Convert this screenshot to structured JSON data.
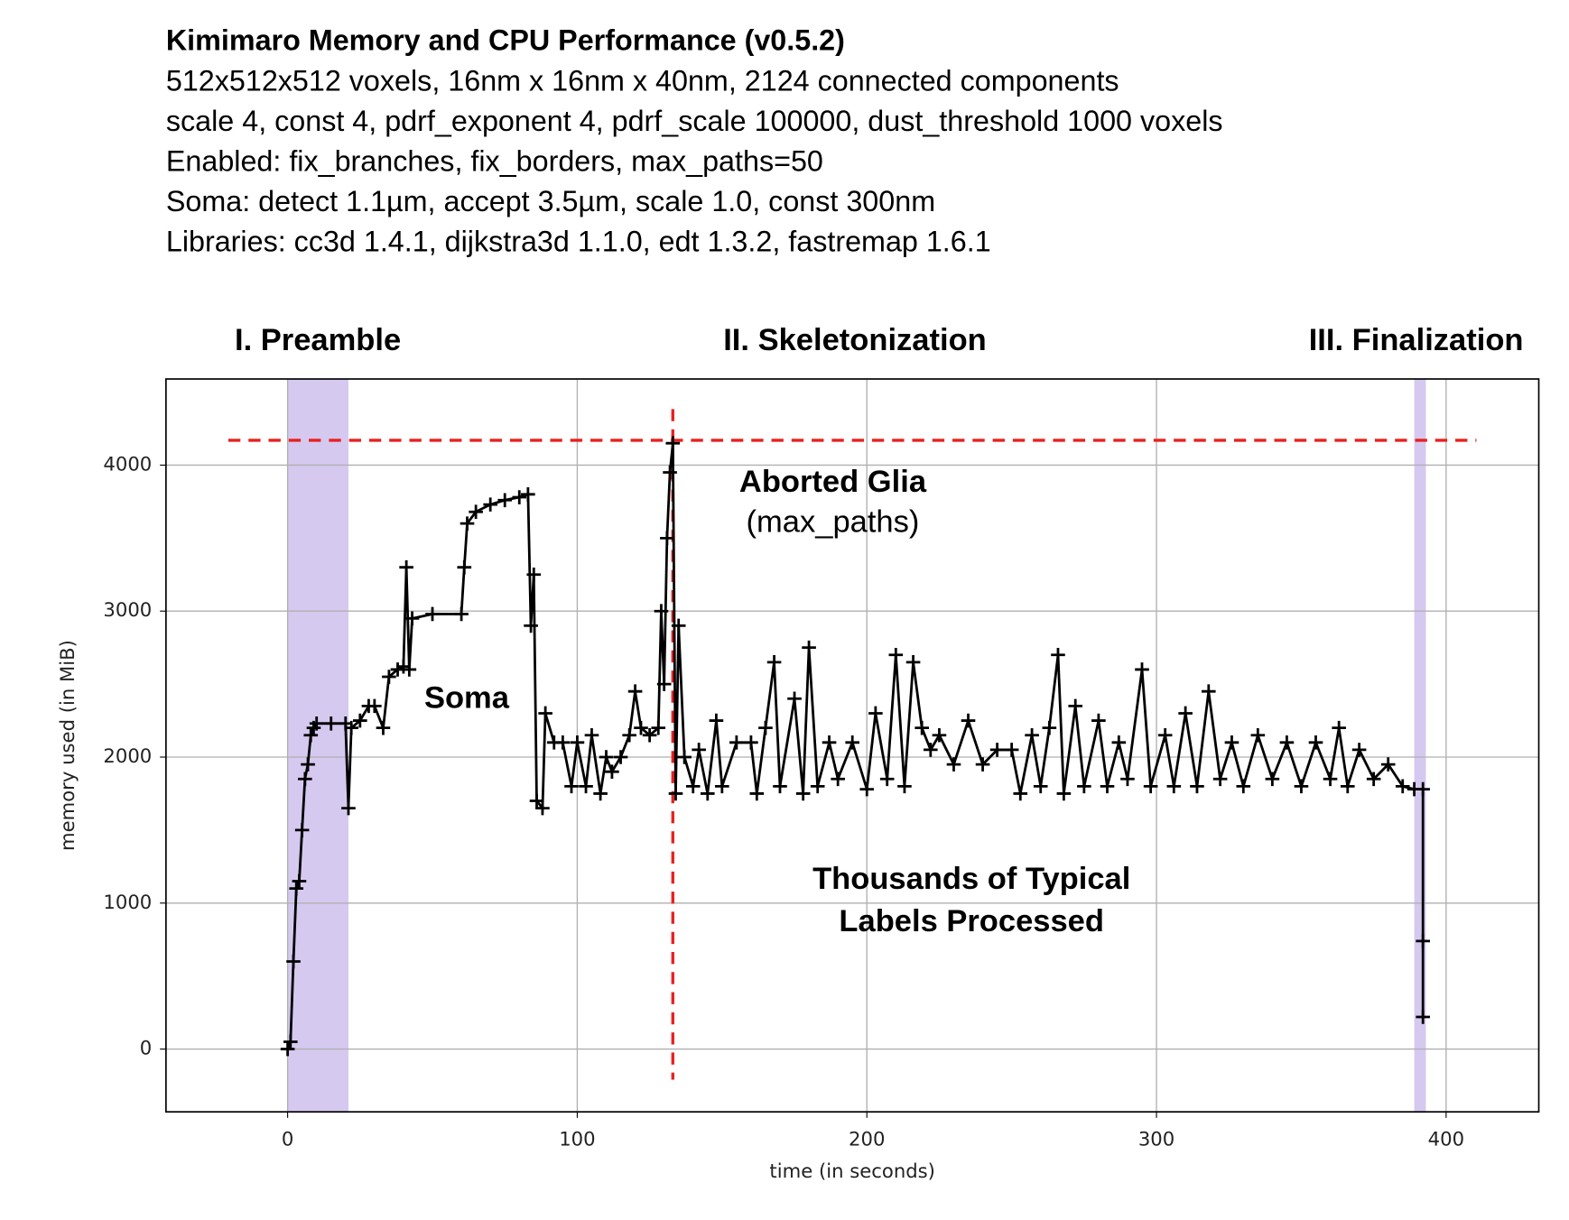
{
  "chart_data": {
    "type": "line",
    "title": "Kimimaro Memory and CPU Performance (v0.5.2)",
    "subtitle": [
      "512x512x512 voxels, 16nm x 16nm x 40nm, 2124 connected components",
      "scale 4, const 4, pdrf_exponent 4, pdrf_scale 100000, dust_threshold 1000 voxels",
      "Enabled: fix_branches, fix_borders, max_paths=50",
      "Soma: detect 1.1µm, accept 3.5µm, scale 1.0, const 300nm",
      "Libraries: cc3d 1.4.1, dijkstra3d 1.1.0, edt 1.3.2, fastremap 1.6.1"
    ],
    "sections": [
      "I. Preamble",
      "II. Skeletonization",
      "III. Finalization"
    ],
    "annotations": [
      {
        "text": [
          "Soma"
        ],
        "bold": true
      },
      {
        "text": [
          "Aborted Glia"
        ],
        "bold": true
      },
      {
        "text": [
          "(max_paths)"
        ],
        "bold": false
      },
      {
        "text": [
          "Thousands of Typical",
          "Labels Processed"
        ],
        "bold": true
      }
    ],
    "xlabel": "time (in seconds)",
    "ylabel": "memory used (in MiB)",
    "xlim": [
      -42,
      432
    ],
    "ylim": [
      -430,
      4590
    ],
    "xticks": [
      0,
      100,
      200,
      300,
      400
    ],
    "yticks": [
      0,
      1000,
      2000,
      3000,
      4000
    ],
    "grid": true,
    "spans": [
      [
        0,
        21
      ],
      [
        389,
        393
      ]
    ],
    "span_color": "#d6c9f0",
    "hlines": [
      4170
    ],
    "vlines": [
      133
    ],
    "ref_color": "#e8211f",
    "series": [
      {
        "color": "#000000",
        "x": [
          0,
          1,
          2,
          3,
          4,
          5,
          6,
          7,
          8,
          9,
          10,
          15,
          20,
          21,
          22,
          25,
          28,
          30,
          33,
          35,
          38,
          40,
          41,
          42,
          43,
          50,
          60,
          61,
          62,
          65,
          70,
          75,
          80,
          83,
          84,
          85,
          86,
          88,
          89,
          92,
          95,
          98,
          100,
          103,
          105,
          108,
          110,
          112,
          115,
          118,
          120,
          122,
          125,
          128,
          129,
          130,
          131,
          132,
          133,
          134,
          135,
          137,
          140,
          142,
          145,
          148,
          150,
          155,
          160,
          162,
          165,
          168,
          170,
          175,
          178,
          180,
          183,
          187,
          190,
          195,
          200,
          203,
          207,
          210,
          213,
          216,
          219,
          222,
          225,
          230,
          235,
          240,
          245,
          250,
          253,
          257,
          260,
          263,
          266,
          268,
          272,
          275,
          280,
          283,
          287,
          290,
          295,
          298,
          303,
          306,
          310,
          314,
          318,
          322,
          326,
          330,
          335,
          340,
          345,
          350,
          355,
          360,
          363,
          366,
          370,
          375,
          380,
          385,
          389,
          392,
          392,
          392
        ],
        "y": [
          0,
          50,
          600,
          1100,
          1150,
          1500,
          1850,
          1950,
          2150,
          2200,
          2230,
          2230,
          2230,
          1650,
          2200,
          2250,
          2350,
          2350,
          2200,
          2550,
          2600,
          2620,
          3300,
          2600,
          2950,
          2980,
          2980,
          3300,
          3600,
          3680,
          3730,
          3760,
          3780,
          3800,
          2900,
          3250,
          1700,
          1650,
          2300,
          2100,
          2100,
          1800,
          2100,
          1800,
          2150,
          1750,
          2000,
          1900,
          2000,
          2150,
          2450,
          2200,
          2150,
          2200,
          3000,
          2500,
          3500,
          3950,
          4150,
          1750,
          2900,
          2000,
          1800,
          2050,
          1750,
          2250,
          1800,
          2100,
          2100,
          1750,
          2200,
          2650,
          1800,
          2400,
          1750,
          2750,
          1800,
          2100,
          1850,
          2100,
          1780,
          2300,
          1850,
          2700,
          1800,
          2650,
          2200,
          2050,
          2150,
          1950,
          2250,
          1950,
          2050,
          2050,
          1750,
          2150,
          1800,
          2200,
          2700,
          1750,
          2350,
          1800,
          2250,
          1800,
          2100,
          1850,
          2600,
          1800,
          2150,
          1800,
          2300,
          1800,
          2450,
          1850,
          2100,
          1800,
          2150,
          1850,
          2100,
          1800,
          2100,
          1850,
          2200,
          1800,
          2050,
          1850,
          1950,
          1800,
          1780,
          1780,
          740,
          220
        ]
      }
    ]
  }
}
